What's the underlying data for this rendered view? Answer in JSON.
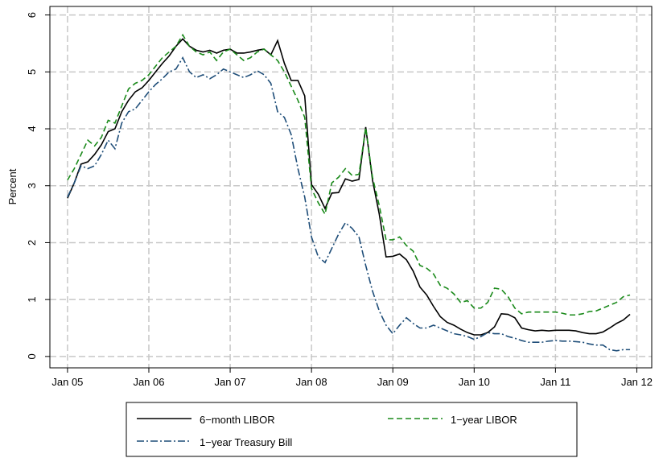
{
  "chart_data": {
    "type": "line",
    "y_label": "Percent",
    "x": [
      0,
      1,
      2,
      3,
      4,
      5,
      6,
      7,
      8,
      9,
      10,
      11,
      12,
      13,
      14,
      15,
      16,
      17,
      18,
      19,
      20,
      21,
      22,
      23,
      24,
      25,
      26,
      27,
      28,
      29,
      30,
      31,
      32,
      33,
      34,
      35,
      36,
      37,
      38,
      39,
      40,
      41,
      42,
      43,
      44,
      45,
      46,
      47,
      48,
      49,
      50,
      51,
      52,
      53,
      54,
      55,
      56,
      57,
      58,
      59,
      60,
      61,
      62,
      63,
      64,
      65,
      66,
      67,
      68,
      69,
      70,
      71,
      72,
      73,
      74,
      75,
      76,
      77,
      78,
      79,
      80,
      81,
      82,
      83
    ],
    "xlim": [
      -2.6,
      86.2
    ],
    "xticks": [
      {
        "value": 0,
        "label": "Jan 05"
      },
      {
        "value": 12,
        "label": "Jan 06"
      },
      {
        "value": 24,
        "label": "Jan 07"
      },
      {
        "value": 36,
        "label": "Jan 08"
      },
      {
        "value": 48,
        "label": "Jan 09"
      },
      {
        "value": 60,
        "label": "Jan 10"
      },
      {
        "value": 72,
        "label": "Jan 11"
      },
      {
        "value": 84,
        "label": "Jan 12"
      }
    ],
    "ylim": [
      -0.2,
      6.15
    ],
    "yticks": [
      0,
      1,
      2,
      3,
      4,
      5,
      6
    ],
    "grid": true,
    "legend": "bottom",
    "series": [
      {
        "name": "6−month LIBOR",
        "color": "#000000",
        "dash": "none",
        "values": [
          2.78,
          3.05,
          3.38,
          3.42,
          3.55,
          3.72,
          3.95,
          4.0,
          4.3,
          4.5,
          4.65,
          4.72,
          4.85,
          5.0,
          5.15,
          5.28,
          5.45,
          5.58,
          5.45,
          5.38,
          5.35,
          5.38,
          5.33,
          5.38,
          5.4,
          5.33,
          5.33,
          5.35,
          5.38,
          5.4,
          5.3,
          5.55,
          5.15,
          4.85,
          4.85,
          4.58,
          3.02,
          2.85,
          2.6,
          2.87,
          2.88,
          3.12,
          3.08,
          3.11,
          4.03,
          3.1,
          2.5,
          1.75,
          1.76,
          1.8,
          1.7,
          1.5,
          1.22,
          1.08,
          0.88,
          0.7,
          0.6,
          0.55,
          0.48,
          0.42,
          0.38,
          0.38,
          0.42,
          0.52,
          0.75,
          0.74,
          0.68,
          0.5,
          0.47,
          0.45,
          0.46,
          0.45,
          0.46,
          0.46,
          0.46,
          0.45,
          0.42,
          0.4,
          0.4,
          0.43,
          0.5,
          0.58,
          0.64,
          0.74
        ]
      },
      {
        "name": "1−year LIBOR",
        "color": "#1a8a1a",
        "dash": "7 4",
        "values": [
          3.1,
          3.3,
          3.55,
          3.8,
          3.7,
          3.85,
          4.15,
          4.1,
          4.4,
          4.7,
          4.8,
          4.85,
          4.95,
          5.1,
          5.25,
          5.35,
          5.45,
          5.65,
          5.45,
          5.35,
          5.3,
          5.35,
          5.2,
          5.35,
          5.4,
          5.3,
          5.2,
          5.25,
          5.35,
          5.4,
          5.3,
          5.2,
          5.0,
          4.75,
          4.5,
          4.2,
          2.95,
          2.7,
          2.5,
          3.05,
          3.15,
          3.3,
          3.18,
          3.2,
          4.02,
          3.15,
          2.65,
          2.05,
          2.05,
          2.1,
          1.95,
          1.85,
          1.6,
          1.55,
          1.45,
          1.25,
          1.2,
          1.1,
          0.95,
          0.98,
          0.85,
          0.85,
          0.95,
          1.2,
          1.18,
          1.05,
          0.85,
          0.75,
          0.78,
          0.78,
          0.78,
          0.78,
          0.78,
          0.76,
          0.73,
          0.73,
          0.75,
          0.79,
          0.8,
          0.85,
          0.9,
          0.95,
          1.05,
          1.08
        ]
      },
      {
        "name": "1−year Treasury Bill",
        "color": "#1f4e79",
        "dash": "9 3 2 3",
        "values": [
          2.8,
          3.05,
          3.35,
          3.3,
          3.35,
          3.55,
          3.8,
          3.65,
          4.1,
          4.3,
          4.35,
          4.5,
          4.65,
          4.78,
          4.88,
          5.0,
          5.05,
          5.25,
          5.0,
          4.9,
          4.95,
          4.88,
          4.95,
          5.05,
          5.0,
          4.95,
          4.9,
          4.95,
          5.02,
          4.95,
          4.8,
          4.3,
          4.2,
          3.9,
          3.3,
          2.8,
          2.1,
          1.75,
          1.65,
          1.9,
          2.15,
          2.35,
          2.25,
          2.1,
          1.6,
          1.15,
          0.8,
          0.55,
          0.4,
          0.55,
          0.68,
          0.58,
          0.5,
          0.5,
          0.55,
          0.5,
          0.45,
          0.4,
          0.38,
          0.35,
          0.3,
          0.35,
          0.42,
          0.4,
          0.4,
          0.35,
          0.32,
          0.28,
          0.25,
          0.25,
          0.25,
          0.27,
          0.28,
          0.27,
          0.27,
          0.26,
          0.25,
          0.22,
          0.2,
          0.2,
          0.12,
          0.1,
          0.12,
          0.12
        ]
      }
    ]
  }
}
